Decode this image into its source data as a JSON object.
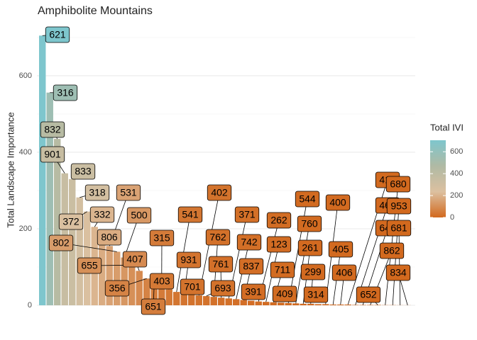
{
  "chart_data": {
    "type": "bar",
    "title": "Amphibolite Mountains",
    "y_label": "Total Landscape Importance",
    "legend_title": "Total IVI",
    "categories": [
      "621",
      "316",
      "832",
      "901",
      "833",
      "318",
      "372",
      "332",
      "806",
      "531",
      "802",
      "500",
      "655",
      "407",
      "356",
      "651",
      "315",
      "403",
      "541",
      "931",
      "701",
      "402",
      "693",
      "762",
      "761",
      "371",
      "742",
      "837",
      "391",
      "262",
      "123",
      "711",
      "409",
      "544",
      "760",
      "261",
      "299",
      "314",
      "400",
      "405",
      "406",
      "412",
      "462",
      "641",
      "862",
      "652",
      "680",
      "953",
      "681",
      "834"
    ],
    "values": [
      705,
      556,
      435,
      345,
      330,
      282,
      245,
      205,
      180,
      155,
      140,
      125,
      105,
      90,
      70,
      55,
      48,
      42,
      35,
      30,
      28,
      26,
      24,
      22,
      20,
      18,
      16,
      14,
      12,
      10,
      9,
      8,
      7,
      6,
      5,
      4,
      4,
      3,
      3,
      2,
      2,
      2,
      1,
      1,
      1,
      1,
      0.5,
      0.5,
      0.3,
      0.2
    ],
    "ylim": [
      0,
      724
    ],
    "yticks": [
      0,
      200,
      400,
      600
    ],
    "grid": true,
    "color_scale": [
      "#d2691e",
      "#dcc0a0",
      "#b0baa4",
      "#7ec6cd"
    ],
    "color_lim": [
      0,
      705
    ],
    "legend_ticks": [
      0,
      200,
      400,
      600
    ]
  }
}
